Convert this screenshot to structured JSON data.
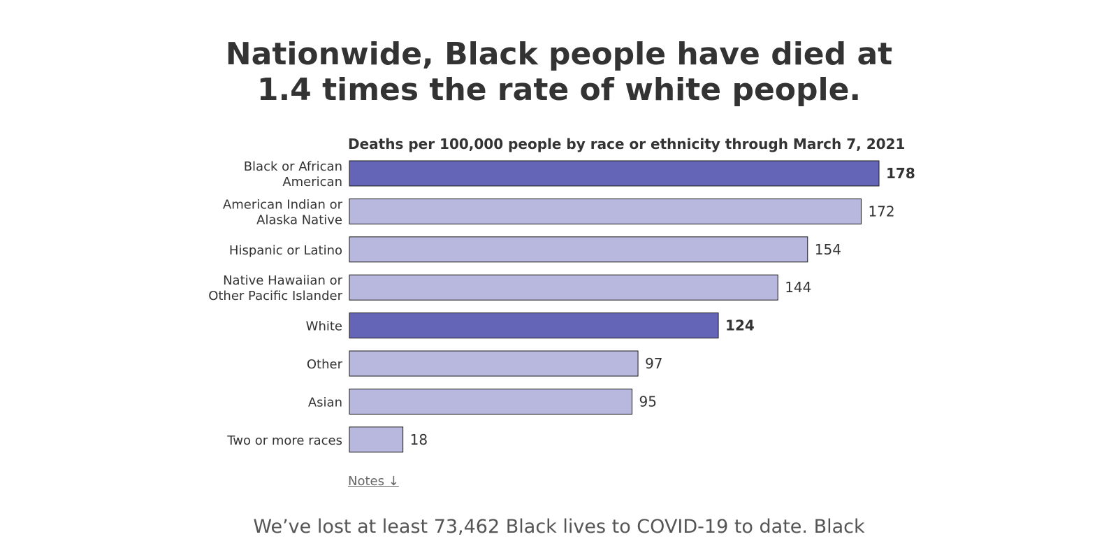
{
  "headline": {
    "line1": "Nationwide, Black people have died at",
    "line2": "1.4 times the rate of white people."
  },
  "notes_link": "Notes ↓",
  "body_text": "We’ve lost at least 73,462 Black lives to COVID-19 to date. Black",
  "colors": {
    "highlight": "#6565b8",
    "default": "#b8b7dd",
    "text": "#333333"
  },
  "chart_data": {
    "type": "bar",
    "orientation": "horizontal",
    "title": "Deaths per 100,000 people by race or ethnicity through March 7, 2021",
    "xlabel": "",
    "ylabel": "",
    "xlim": [
      0,
      178
    ],
    "grid": false,
    "categories": [
      [
        "Black or African",
        "American"
      ],
      [
        "American Indian or",
        "Alaska Native"
      ],
      [
        "Hispanic or Latino"
      ],
      [
        "Native Hawaiian or",
        "Other Pacific Islander"
      ],
      [
        "White"
      ],
      [
        "Other"
      ],
      [
        "Asian"
      ],
      [
        "Two or more races"
      ]
    ],
    "values": [
      178,
      172,
      154,
      144,
      124,
      97,
      95,
      18
    ],
    "highlighted": [
      true,
      false,
      false,
      false,
      true,
      false,
      false,
      false
    ]
  }
}
